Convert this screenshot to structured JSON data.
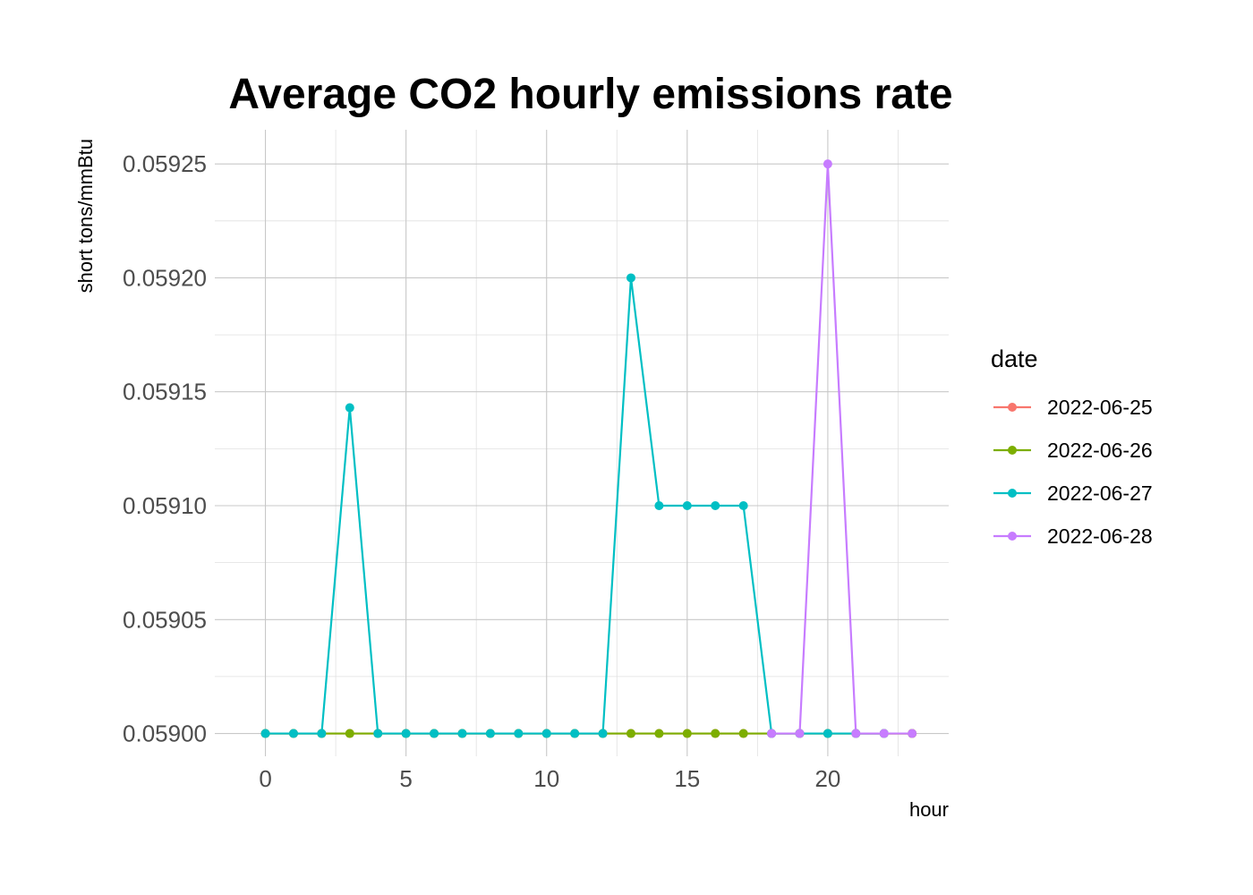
{
  "chart_data": {
    "type": "line",
    "title": "Average CO2 hourly emissions rate",
    "xlabel": "hour",
    "ylabel": "short tons/mmBtu",
    "xlim": [
      -1.8,
      24.3
    ],
    "ylim": [
      0.05899,
      0.059265
    ],
    "x_ticks": [
      0,
      5,
      10,
      15,
      20
    ],
    "x_tick_labels": [
      "0",
      "5",
      "10",
      "15",
      "20"
    ],
    "y_ticks": [
      0.059,
      0.05905,
      0.0591,
      0.05915,
      0.0592,
      0.05925
    ],
    "y_tick_labels": [
      "0.05900",
      "0.05905",
      "0.05910",
      "0.05915",
      "0.05920",
      "0.05925"
    ],
    "grid": true,
    "legend": {
      "title": "date",
      "position": "right"
    },
    "series": [
      {
        "name": "2022-06-25",
        "color": "#F8766D",
        "x": [
          0,
          1,
          2,
          3,
          4,
          5,
          6,
          7,
          8,
          9,
          10,
          11,
          12,
          13,
          14,
          15,
          16,
          17,
          18,
          19,
          20,
          21,
          22,
          23
        ],
        "values": [
          0.059,
          0.059,
          0.059,
          0.059,
          0.059,
          0.059,
          0.059,
          0.059,
          0.059,
          0.059,
          0.059,
          0.059,
          0.059,
          0.059,
          0.059,
          0.059,
          0.059,
          0.059,
          0.059,
          0.059,
          0.059,
          0.059,
          0.059,
          0.059
        ]
      },
      {
        "name": "2022-06-26",
        "color": "#7CAE00",
        "x": [
          0,
          1,
          2,
          3,
          4,
          5,
          6,
          7,
          8,
          9,
          10,
          11,
          12,
          13,
          14,
          15,
          16,
          17,
          18,
          19,
          20,
          21,
          22,
          23
        ],
        "values": [
          0.059,
          0.059,
          0.059,
          0.059,
          0.059,
          0.059,
          0.059,
          0.059,
          0.059,
          0.059,
          0.059,
          0.059,
          0.059,
          0.059,
          0.059,
          0.059,
          0.059,
          0.059,
          0.059,
          0.059,
          0.059,
          0.059,
          0.059,
          0.059
        ]
      },
      {
        "name": "2022-06-27",
        "color": "#00BFC4",
        "x": [
          0,
          1,
          2,
          3,
          4,
          5,
          6,
          7,
          8,
          9,
          10,
          11,
          12,
          13,
          14,
          15,
          16,
          17,
          18,
          19,
          20,
          21,
          22
        ],
        "values": [
          0.059,
          0.059,
          0.059,
          0.059143,
          0.059,
          0.059,
          0.059,
          0.059,
          0.059,
          0.059,
          0.059,
          0.059,
          0.059,
          0.0592,
          0.0591,
          0.0591,
          0.0591,
          0.0591,
          0.059,
          0.059,
          0.059,
          0.059,
          0.059
        ]
      },
      {
        "name": "2022-06-28",
        "color": "#C77CFF",
        "x": [
          18,
          19,
          20,
          21,
          22,
          23
        ],
        "values": [
          0.059,
          0.059,
          0.05925,
          0.059,
          0.059,
          0.059
        ]
      }
    ]
  }
}
